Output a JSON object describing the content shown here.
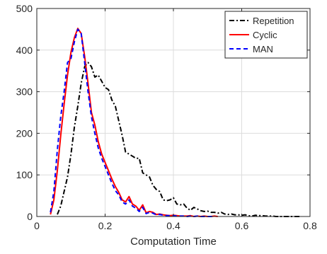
{
  "chart_data": {
    "type": "line",
    "title": "",
    "xlabel": "Computation Time",
    "ylabel": "",
    "xlim": [
      0,
      0.8
    ],
    "ylim": [
      0,
      500
    ],
    "xticks": [
      0,
      0.2,
      0.4,
      0.6,
      0.8
    ],
    "xtick_labels": [
      "0",
      "0.2",
      "0.4",
      "0.6",
      "0.8"
    ],
    "yticks": [
      0,
      100,
      200,
      300,
      400,
      500
    ],
    "ytick_labels": [
      "0",
      "100",
      "200",
      "300",
      "400",
      "500"
    ],
    "grid": true,
    "legend": "top-right",
    "series": [
      {
        "name": "Repetition",
        "color": "#000000",
        "line_style": "dash-dot",
        "x": [
          0.06,
          0.07,
          0.08,
          0.09,
          0.1,
          0.11,
          0.12,
          0.13,
          0.14,
          0.15,
          0.16,
          0.17,
          0.18,
          0.19,
          0.2,
          0.21,
          0.22,
          0.23,
          0.24,
          0.25,
          0.26,
          0.27,
          0.28,
          0.29,
          0.3,
          0.31,
          0.32,
          0.33,
          0.34,
          0.35,
          0.36,
          0.37,
          0.38,
          0.39,
          0.4,
          0.41,
          0.42,
          0.43,
          0.44,
          0.45,
          0.46,
          0.47,
          0.48,
          0.49,
          0.5,
          0.51,
          0.52,
          0.53,
          0.54,
          0.55,
          0.56,
          0.57,
          0.58,
          0.59,
          0.6,
          0.61,
          0.62,
          0.63,
          0.64,
          0.65,
          0.66,
          0.67,
          0.68,
          0.69,
          0.7,
          0.71,
          0.72,
          0.73,
          0.74,
          0.75,
          0.76,
          0.77
        ],
        "y": [
          5,
          25,
          60,
          95,
          150,
          215,
          265,
          320,
          360,
          370,
          360,
          335,
          340,
          325,
          310,
          305,
          280,
          265,
          230,
          195,
          155,
          150,
          145,
          140,
          140,
          105,
          100,
          95,
          75,
          65,
          60,
          40,
          38,
          40,
          45,
          30,
          28,
          30,
          20,
          15,
          22,
          18,
          14,
          12,
          13,
          10,
          10,
          8,
          10,
          6,
          5,
          6,
          4,
          4,
          3,
          4,
          2,
          1,
          3,
          2,
          2,
          1,
          1,
          1,
          0,
          0,
          0,
          0,
          0,
          0,
          0,
          0
        ]
      },
      {
        "name": "Cyclic",
        "color": "#ff0000",
        "line_style": "solid",
        "x": [
          0.04,
          0.05,
          0.06,
          0.07,
          0.08,
          0.09,
          0.1,
          0.11,
          0.12,
          0.13,
          0.14,
          0.15,
          0.16,
          0.17,
          0.18,
          0.19,
          0.2,
          0.21,
          0.22,
          0.23,
          0.24,
          0.25,
          0.26,
          0.27,
          0.28,
          0.29,
          0.3,
          0.31,
          0.32,
          0.33,
          0.34,
          0.35,
          0.36,
          0.37,
          0.38,
          0.39,
          0.4,
          0.41,
          0.42,
          0.43,
          0.44,
          0.45,
          0.46,
          0.47,
          0.48,
          0.49,
          0.5,
          0.51,
          0.52,
          0.53
        ],
        "y": [
          5,
          40,
          110,
          195,
          270,
          340,
          395,
          430,
          452,
          440,
          385,
          320,
          250,
          220,
          180,
          150,
          130,
          110,
          90,
          72,
          58,
          40,
          35,
          48,
          30,
          25,
          15,
          28,
          9,
          12,
          10,
          5,
          6,
          4,
          3,
          2,
          3,
          2,
          1,
          1,
          1,
          2,
          0,
          1,
          0,
          1,
          0,
          0,
          1,
          0
        ]
      },
      {
        "name": "MAN",
        "color": "#0000ff",
        "line_style": "dashed",
        "x": [
          0.04,
          0.05,
          0.06,
          0.07,
          0.08,
          0.09,
          0.1,
          0.11,
          0.12,
          0.13,
          0.14,
          0.15,
          0.16,
          0.17,
          0.18,
          0.19,
          0.2,
          0.21,
          0.22,
          0.23,
          0.24,
          0.25,
          0.26,
          0.27,
          0.28,
          0.29,
          0.3,
          0.31,
          0.32,
          0.33,
          0.34,
          0.35,
          0.36,
          0.37,
          0.38,
          0.39,
          0.4,
          0.41,
          0.42,
          0.43,
          0.44,
          0.45,
          0.46,
          0.47,
          0.48,
          0.49,
          0.5,
          0.51,
          0.52
        ],
        "y": [
          10,
          60,
          160,
          240,
          300,
          370,
          380,
          420,
          450,
          440,
          370,
          300,
          240,
          200,
          165,
          140,
          120,
          100,
          80,
          62,
          52,
          35,
          30,
          40,
          25,
          20,
          12,
          22,
          7,
          10,
          8,
          4,
          5,
          3,
          2,
          2,
          2,
          1,
          1,
          1,
          0,
          1,
          0,
          1,
          0,
          0,
          0,
          0,
          0
        ]
      }
    ]
  }
}
